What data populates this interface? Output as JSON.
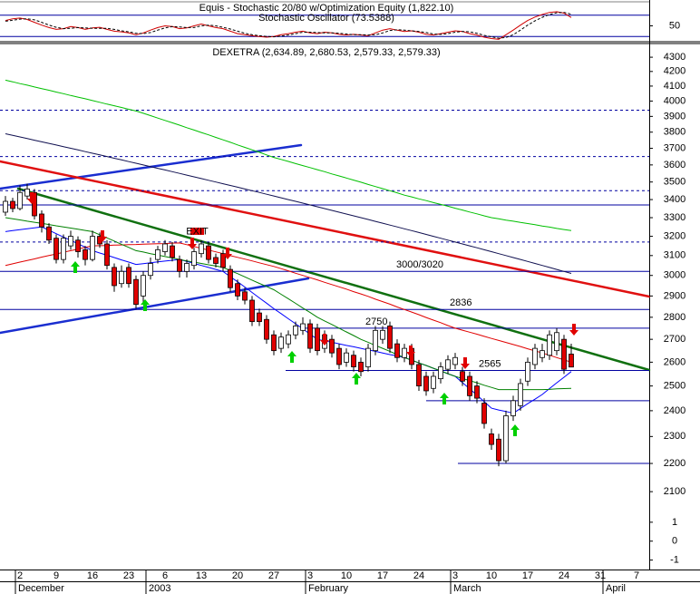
{
  "chart_data": [
    {
      "type": "line",
      "title": "Equis - Stochastic 20/80 w/Optimization Equity (1,822.10)",
      "subtitle": "Stochastic Oscillator (73.5388)",
      "ylim": [
        0,
        100
      ],
      "yticks": [
        50
      ],
      "hlines": [
        80,
        20
      ],
      "hline_color": "#0000a0",
      "series": [
        {
          "color": "#d00000",
          "values": [
            65,
            70,
            72,
            68,
            60,
            52,
            45,
            40,
            42,
            48,
            45,
            40,
            44,
            46,
            40,
            35,
            33,
            30,
            25,
            30,
            38,
            45,
            50,
            48,
            42,
            44,
            50,
            55,
            50,
            45,
            42,
            35,
            28,
            25,
            22,
            20,
            18,
            20,
            25,
            28,
            32,
            35,
            30,
            28,
            32,
            30,
            26,
            24,
            26,
            24,
            22,
            30,
            38,
            42,
            38,
            34,
            36,
            32,
            26,
            24,
            28,
            32,
            36,
            34,
            28,
            24,
            18,
            14,
            12,
            25,
            38,
            52,
            65,
            75,
            82,
            88,
            90,
            86,
            73.5388,
            null,
            null,
            null,
            null,
            null,
            null,
            null,
            null,
            null,
            null
          ]
        },
        {
          "color": "#000000",
          "dashed": true,
          "values": [
            63,
            66,
            69,
            70,
            67,
            60,
            52,
            46,
            42,
            43,
            45,
            44,
            43,
            43,
            43,
            40,
            36,
            33,
            29,
            28,
            31,
            38,
            44,
            48,
            47,
            45,
            45,
            50,
            52,
            50,
            46,
            41,
            35,
            29,
            25,
            22,
            20,
            19,
            21,
            24,
            28,
            32,
            32,
            31,
            30,
            30,
            29,
            27,
            25,
            25,
            24,
            25,
            30,
            37,
            39,
            38,
            36,
            34,
            31,
            27,
            26,
            28,
            32,
            34,
            33,
            29,
            23,
            19,
            15,
            17,
            25,
            38,
            52,
            64,
            74,
            82,
            87,
            88,
            83,
            null,
            null,
            null,
            null,
            null,
            null,
            null,
            null,
            null,
            null
          ]
        }
      ]
    },
    {
      "type": "candlestick",
      "title": "DEXETRA (2,634.89, 2,680.53, 2,579.33, 2,579.33)",
      "categories": [
        null,
        null,
        "2",
        null,
        null,
        null,
        null,
        "9",
        null,
        null,
        null,
        null,
        "16",
        null,
        null,
        null,
        null,
        "23",
        null,
        null,
        null,
        null,
        "6",
        null,
        null,
        null,
        null,
        "13",
        null,
        null,
        null,
        null,
        "20",
        null,
        null,
        null,
        null,
        "27",
        null,
        null,
        null,
        null,
        "3",
        null,
        null,
        null,
        null,
        "10",
        null,
        null,
        null,
        null,
        "17",
        null,
        null,
        null,
        null,
        "24",
        null,
        null,
        null,
        null,
        "3",
        null,
        null,
        null,
        null,
        "10",
        null,
        null,
        null,
        null,
        "17",
        null,
        null,
        null,
        null,
        "24",
        null,
        null,
        null,
        null,
        "31",
        null,
        null,
        null,
        null,
        "7",
        null
      ],
      "months": [
        "December",
        "2003",
        "February",
        "March",
        "April"
      ],
      "log_scale": true,
      "ylim": [
        2060,
        4385
      ],
      "yticks": [
        2100,
        2200,
        2300,
        2400,
        2500,
        2600,
        2700,
        2800,
        2900,
        3000,
        3100,
        3200,
        3300,
        3400,
        3500,
        3600,
        3700,
        3800,
        3900,
        4000,
        4100,
        4200,
        4300
      ],
      "up_color": "#ffffff",
      "down_color": "#e00000",
      "open": [
        3330,
        3390,
        3350,
        3420,
        3440,
        3320,
        3250,
        3190,
        3080,
        3150,
        3180,
        3130,
        3080,
        3200,
        3160,
        3040,
        2960,
        3040,
        2980,
        2900,
        3000,
        3080,
        3120,
        3150,
        3080,
        3020,
        3050,
        3110,
        3150,
        3090,
        3110,
        3030,
        2960,
        2920,
        2880,
        2820,
        2790,
        2720,
        2660,
        2680,
        2720,
        2740,
        2770,
        2750,
        2660,
        2700,
        2660,
        2600,
        2630,
        2600,
        2580,
        2650,
        2700,
        2760,
        2680,
        2620,
        2660,
        2590,
        2540,
        2490,
        2530,
        2570,
        2590,
        2560,
        2540,
        2500,
        2430,
        2310,
        2290,
        2210,
        2380,
        2420,
        2520,
        2590,
        2620,
        2630,
        2650,
        2700,
        2634.89,
        null,
        null,
        null,
        null,
        null,
        null,
        null,
        null,
        null,
        null
      ],
      "high": [
        3420,
        3410,
        3480,
        3490,
        3460,
        3340,
        3270,
        3210,
        3210,
        3230,
        3200,
        3150,
        3230,
        3220,
        3180,
        3060,
        3050,
        3060,
        3000,
        3020,
        3090,
        3150,
        3180,
        3170,
        3100,
        3080,
        3140,
        3180,
        3170,
        3110,
        3130,
        3050,
        2980,
        2940,
        2900,
        2840,
        2810,
        2740,
        2730,
        2740,
        2780,
        2800,
        2790,
        2770,
        2740,
        2720,
        2680,
        2660,
        2650,
        2620,
        2680,
        2760,
        2760,
        2780,
        2700,
        2680,
        2680,
        2610,
        2560,
        2560,
        2600,
        2630,
        2640,
        2580,
        2560,
        2520,
        2450,
        2330,
        2310,
        2400,
        2460,
        2530,
        2620,
        2680,
        2680,
        2740,
        2750,
        2720,
        2680.53,
        null,
        null,
        null,
        null,
        null,
        null,
        null,
        null,
        null,
        null
      ],
      "low": [
        3310,
        3330,
        3340,
        3400,
        3290,
        3220,
        3160,
        3060,
        3060,
        3130,
        3090,
        3050,
        3070,
        3140,
        3030,
        2920,
        2940,
        2940,
        2840,
        2870,
        2980,
        3060,
        3100,
        3070,
        2990,
        2990,
        3030,
        3090,
        3060,
        3040,
        3020,
        2920,
        2880,
        2860,
        2760,
        2760,
        2680,
        2630,
        2640,
        2660,
        2700,
        2720,
        2640,
        2630,
        2640,
        2620,
        2570,
        2580,
        2560,
        2540,
        2560,
        2630,
        2680,
        2640,
        2600,
        2600,
        2570,
        2480,
        2460,
        2470,
        2510,
        2550,
        2570,
        2500,
        2440,
        2430,
        2330,
        2250,
        2190,
        2200,
        2360,
        2400,
        2500,
        2570,
        2600,
        2610,
        2630,
        2550,
        2579.33,
        null,
        null,
        null,
        null,
        null,
        null,
        null,
        null,
        null,
        null
      ],
      "close": [
        3390,
        3350,
        3440,
        3460,
        3310,
        3250,
        3180,
        3080,
        3190,
        3200,
        3120,
        3080,
        3200,
        3160,
        3050,
        2950,
        3020,
        2960,
        2860,
        3000,
        3060,
        3130,
        3160,
        3090,
        3020,
        3060,
        3120,
        3160,
        3080,
        3060,
        3040,
        2940,
        2900,
        2880,
        2780,
        2780,
        2700,
        2650,
        2710,
        2720,
        2760,
        2770,
        2660,
        2650,
        2720,
        2640,
        2590,
        2640,
        2580,
        2560,
        2660,
        2740,
        2740,
        2660,
        2620,
        2660,
        2590,
        2500,
        2480,
        2540,
        2580,
        2610,
        2620,
        2520,
        2460,
        2450,
        2350,
        2270,
        2210,
        2380,
        2440,
        2510,
        2600,
        2660,
        2650,
        2720,
        2730,
        2570,
        2579.33,
        null,
        null,
        null,
        null,
        null,
        null,
        null,
        null,
        null,
        null
      ],
      "moving_averages": [
        {
          "color": "#101050",
          "values": [
            3790,
            3780,
            3770,
            3760,
            3750,
            3740,
            3730,
            3720,
            3710,
            3700,
            3690,
            3680,
            3670,
            3660,
            3650,
            3640,
            3630,
            3620,
            3610,
            3600,
            3590,
            3580,
            3570,
            3560,
            3550,
            3540,
            3530,
            3520,
            3510,
            3500,
            3490,
            3480,
            3470,
            3460,
            3450,
            3440,
            3430,
            3420,
            3410,
            3400,
            3390,
            3380,
            3370,
            3360,
            3350,
            3340,
            3330,
            3320,
            3310,
            3300,
            3290,
            3280,
            3270,
            3260,
            3250,
            3240,
            3230,
            3220,
            3210,
            3200,
            3190,
            3180,
            3170,
            3160,
            3150,
            3140,
            3130,
            3120,
            3110,
            3100,
            3090,
            3080,
            3070,
            3060,
            3050,
            3040,
            3030,
            3020,
            3010,
            null,
            null,
            null,
            null,
            null,
            null,
            null,
            null,
            null,
            null
          ]
        },
        {
          "color": "#00c000",
          "values": [
            4140,
            4129,
            4117,
            4106,
            4094,
            4083,
            4072,
            4060,
            4049,
            4037,
            4026,
            4015,
            4003,
            3992,
            3980,
            3969,
            3958,
            3946,
            3935,
            3920,
            3905,
            3889,
            3874,
            3859,
            3844,
            3828,
            3813,
            3798,
            3783,
            3767,
            3752,
            3737,
            3721,
            3706,
            3691,
            3676,
            3660,
            3645,
            3633,
            3621,
            3608,
            3596,
            3584,
            3572,
            3560,
            3547,
            3535,
            3523,
            3511,
            3499,
            3486,
            3474,
            3462,
            3450,
            3438,
            3425,
            3415,
            3404,
            3394,
            3383,
            3373,
            3363,
            3352,
            3342,
            3331,
            3321,
            3310,
            3300,
            3294,
            3287,
            3281,
            3274,
            3268,
            3262,
            3255,
            3249,
            3242,
            3236,
            3230,
            null,
            null,
            null,
            null,
            null,
            null,
            null,
            null,
            null,
            null
          ]
        },
        {
          "color": "#e00000",
          "values": [
            3050,
            3058,
            3067,
            3075,
            3083,
            3092,
            3100,
            3108,
            3117,
            3125,
            3133,
            3142,
            3150,
            3151,
            3152,
            3154,
            3155,
            3156,
            3157,
            3159,
            3160,
            3161,
            3162,
            3164,
            3165,
            3156,
            3147,
            3137,
            3128,
            3119,
            3110,
            3100,
            3091,
            3082,
            3073,
            3063,
            3054,
            3045,
            3034,
            3023,
            3011,
            3000,
            2989,
            2978,
            2966,
            2955,
            2944,
            2933,
            2921,
            2910,
            2898,
            2885,
            2873,
            2861,
            2848,
            2836,
            2824,
            2812,
            2799,
            2787,
            2775,
            2762,
            2750,
            2741,
            2732,
            2723,
            2713,
            2704,
            2695,
            2686,
            2677,
            2668,
            2658,
            2649,
            2640,
            2630,
            2620,
            2610,
            2600,
            null,
            null,
            null,
            null,
            null,
            null,
            null,
            null,
            null,
            null
          ]
        },
        {
          "color": "#0000ff",
          "values": [
            3225,
            3230,
            3235,
            3240,
            3245,
            3250,
            3232,
            3214,
            3196,
            3179,
            3161,
            3143,
            3125,
            3113,
            3102,
            3090,
            3078,
            3067,
            3055,
            3059,
            3063,
            3068,
            3072,
            3076,
            3080,
            3070,
            3060,
            3050,
            3040,
            3030,
            3020,
            2994,
            2969,
            2943,
            2917,
            2891,
            2866,
            2840,
            2817,
            2793,
            2770,
            2747,
            2723,
            2700,
            2693,
            2687,
            2680,
            2673,
            2667,
            2660,
            2653,
            2647,
            2640,
            2633,
            2627,
            2620,
            2609,
            2597,
            2586,
            2574,
            2563,
            2551,
            2540,
            2514,
            2488,
            2462,
            2436,
            2410,
            2403,
            2397,
            2390,
            2409,
            2428,
            2446,
            2465,
            2489,
            2513,
            2536,
            2560,
            null,
            null,
            null,
            null,
            null,
            null,
            null,
            null,
            null,
            null
          ]
        },
        {
          "color": "#008000",
          "values": [
            3300,
            3294,
            3288,
            3281,
            3275,
            3269,
            3263,
            3256,
            3250,
            3244,
            3238,
            3231,
            3225,
            3208,
            3192,
            3175,
            3158,
            3142,
            3125,
            3118,
            3110,
            3103,
            3095,
            3088,
            3080,
            3073,
            3067,
            3060,
            3053,
            3047,
            3040,
            3024,
            3009,
            2993,
            2977,
            2961,
            2946,
            2930,
            2908,
            2887,
            2865,
            2843,
            2822,
            2800,
            2783,
            2767,
            2750,
            2733,
            2717,
            2700,
            2687,
            2673,
            2660,
            2647,
            2633,
            2620,
            2609,
            2597,
            2586,
            2574,
            2563,
            2551,
            2540,
            2531,
            2522,
            2513,
            2503,
            2494,
            2485,
            2485,
            2485,
            2485,
            2485,
            2485,
            2485,
            2486,
            2488,
            2489,
            2490,
            null,
            null,
            null,
            null,
            null,
            null,
            null,
            null,
            null,
            null
          ]
        }
      ],
      "hline_color": "#0000a0",
      "hlines": [
        {
          "value": 3940,
          "dashed": true
        },
        {
          "value": 3650,
          "dashed": true
        },
        {
          "value": 3450,
          "dashed": true
        },
        {
          "value": 3370
        },
        {
          "value": 3170,
          "dashed": true
        },
        {
          "value": 3020,
          "label": "3000/3020"
        },
        {
          "value": 2836,
          "label": "2836"
        },
        {
          "value": 2750,
          "label": "2750"
        },
        {
          "value": 2565,
          "label": "2565"
        },
        {
          "value": 2440
        },
        {
          "value": 2200
        }
      ],
      "annotations": [
        "EXIT"
      ]
    },
    {
      "type": "indicator",
      "ylim": [
        -1.5,
        2
      ],
      "yticks": [
        1,
        0,
        -1
      ]
    }
  ]
}
